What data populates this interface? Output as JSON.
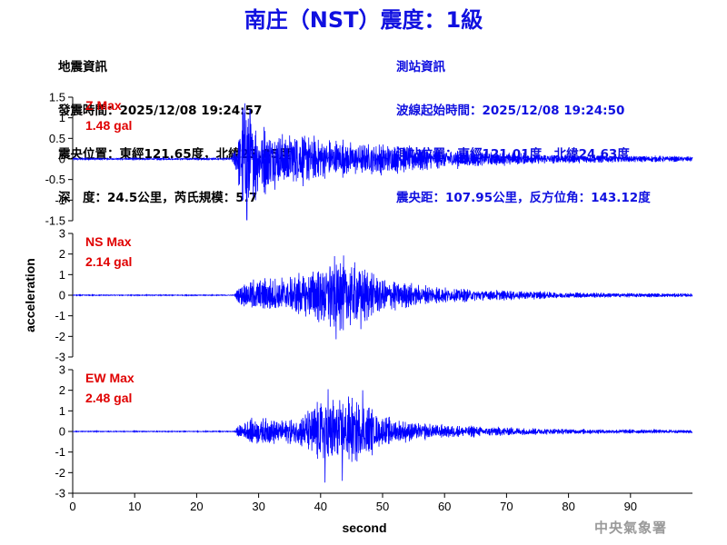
{
  "title": "南庄（NST）震度：1級",
  "event_info": {
    "header": "地震資訊",
    "origin_time": "發震時間：2025/12/08 19:24:57",
    "epicenter": "震央位置：東經121.65度，北緯23.85度",
    "depth_magnitude": "深　度：24.5公里，芮氏規模：5.7"
  },
  "station_info": {
    "header": "測站資訊",
    "wave_start": "波線起始時間：2025/12/08 19:24:50",
    "station_location": "測站位置：東經121.01度，北緯24.63度",
    "distance_azimuth": "震央距：107.95公里，反方位角：143.12度"
  },
  "agency": "中央氣象署",
  "colors": {
    "title": "#1010e0",
    "trace": "#0000ff",
    "max_label": "#e00000",
    "agency": "#9a9a9a"
  },
  "chart_data": {
    "type": "line",
    "xlabel": "second",
    "ylabel": "acceleration",
    "xlim": [
      0,
      100
    ],
    "xticks": [
      0,
      10,
      20,
      30,
      40,
      50,
      60,
      70,
      80,
      90
    ],
    "panels": [
      {
        "component": "Z",
        "max_label": "Z Max",
        "max_value": "1.48 gal",
        "ylim": [
          -1.5,
          1.5
        ],
        "yticks": [
          "1.5",
          "1",
          "0.5",
          "0",
          "-0.5",
          "-1",
          "-1.5"
        ],
        "ytick_values": [
          1.5,
          1,
          0.5,
          0,
          -0.5,
          -1,
          -1.5
        ],
        "envelope": [
          [
            0,
            0.02
          ],
          [
            25.5,
            0.02
          ],
          [
            26.5,
            0.4
          ],
          [
            27.5,
            1.3
          ],
          [
            28,
            1.45
          ],
          [
            29,
            0.9
          ],
          [
            31,
            0.75
          ],
          [
            35,
            0.65
          ],
          [
            40,
            0.5
          ],
          [
            45,
            0.4
          ],
          [
            50,
            0.35
          ],
          [
            60,
            0.22
          ],
          [
            70,
            0.15
          ],
          [
            80,
            0.1
          ],
          [
            90,
            0.08
          ],
          [
            100,
            0.06
          ]
        ],
        "peaks": [
          [
            27.8,
            1.35
          ],
          [
            28.1,
            -1.48
          ],
          [
            28.6,
            1.2
          ],
          [
            29.5,
            -1.0
          ]
        ]
      },
      {
        "component": "NS",
        "max_label": "NS Max",
        "max_value": "2.14 gal",
        "ylim": [
          -3,
          3
        ],
        "yticks": [
          "3",
          "2",
          "1",
          "0",
          "-1",
          "-2",
          "-3"
        ],
        "ytick_values": [
          3,
          2,
          1,
          0,
          -1,
          -2,
          -3
        ],
        "envelope": [
          [
            0,
            0.02
          ],
          [
            26,
            0.02
          ],
          [
            27,
            0.4
          ],
          [
            29,
            0.75
          ],
          [
            33,
            0.8
          ],
          [
            38,
            1.1
          ],
          [
            42,
            1.7
          ],
          [
            44,
            1.6
          ],
          [
            47,
            1.3
          ],
          [
            50,
            0.8
          ],
          [
            55,
            0.5
          ],
          [
            60,
            0.35
          ],
          [
            70,
            0.22
          ],
          [
            80,
            0.14
          ],
          [
            90,
            0.1
          ],
          [
            100,
            0.08
          ]
        ],
        "peaks": [
          [
            42.5,
            -2.14
          ],
          [
            43.2,
            1.55
          ],
          [
            45.5,
            1.6
          ],
          [
            46.5,
            -1.65
          ],
          [
            41.5,
            1.4
          ]
        ]
      },
      {
        "component": "EW",
        "max_label": "EW Max",
        "max_value": "2.48 gal",
        "ylim": [
          -3,
          3
        ],
        "yticks": [
          "3",
          "2",
          "1",
          "0",
          "-1",
          "-2",
          "-3"
        ],
        "ytick_values": [
          3,
          2,
          1,
          0,
          -1,
          -2,
          -3
        ],
        "envelope": [
          [
            0,
            0.02
          ],
          [
            26,
            0.02
          ],
          [
            27,
            0.35
          ],
          [
            29,
            0.6
          ],
          [
            33,
            0.55
          ],
          [
            37,
            0.7
          ],
          [
            40,
            1.6
          ],
          [
            42,
            1.7
          ],
          [
            44,
            1.5
          ],
          [
            47,
            1.3
          ],
          [
            50,
            0.65
          ],
          [
            55,
            0.4
          ],
          [
            60,
            0.3
          ],
          [
            70,
            0.2
          ],
          [
            80,
            0.12
          ],
          [
            90,
            0.1
          ],
          [
            100,
            0.08
          ]
        ],
        "peaks": [
          [
            40.7,
            -2.48
          ],
          [
            41.2,
            2.05
          ],
          [
            43.5,
            -2.4
          ],
          [
            46.8,
            2.0
          ],
          [
            44.5,
            1.7
          ]
        ]
      }
    ]
  }
}
